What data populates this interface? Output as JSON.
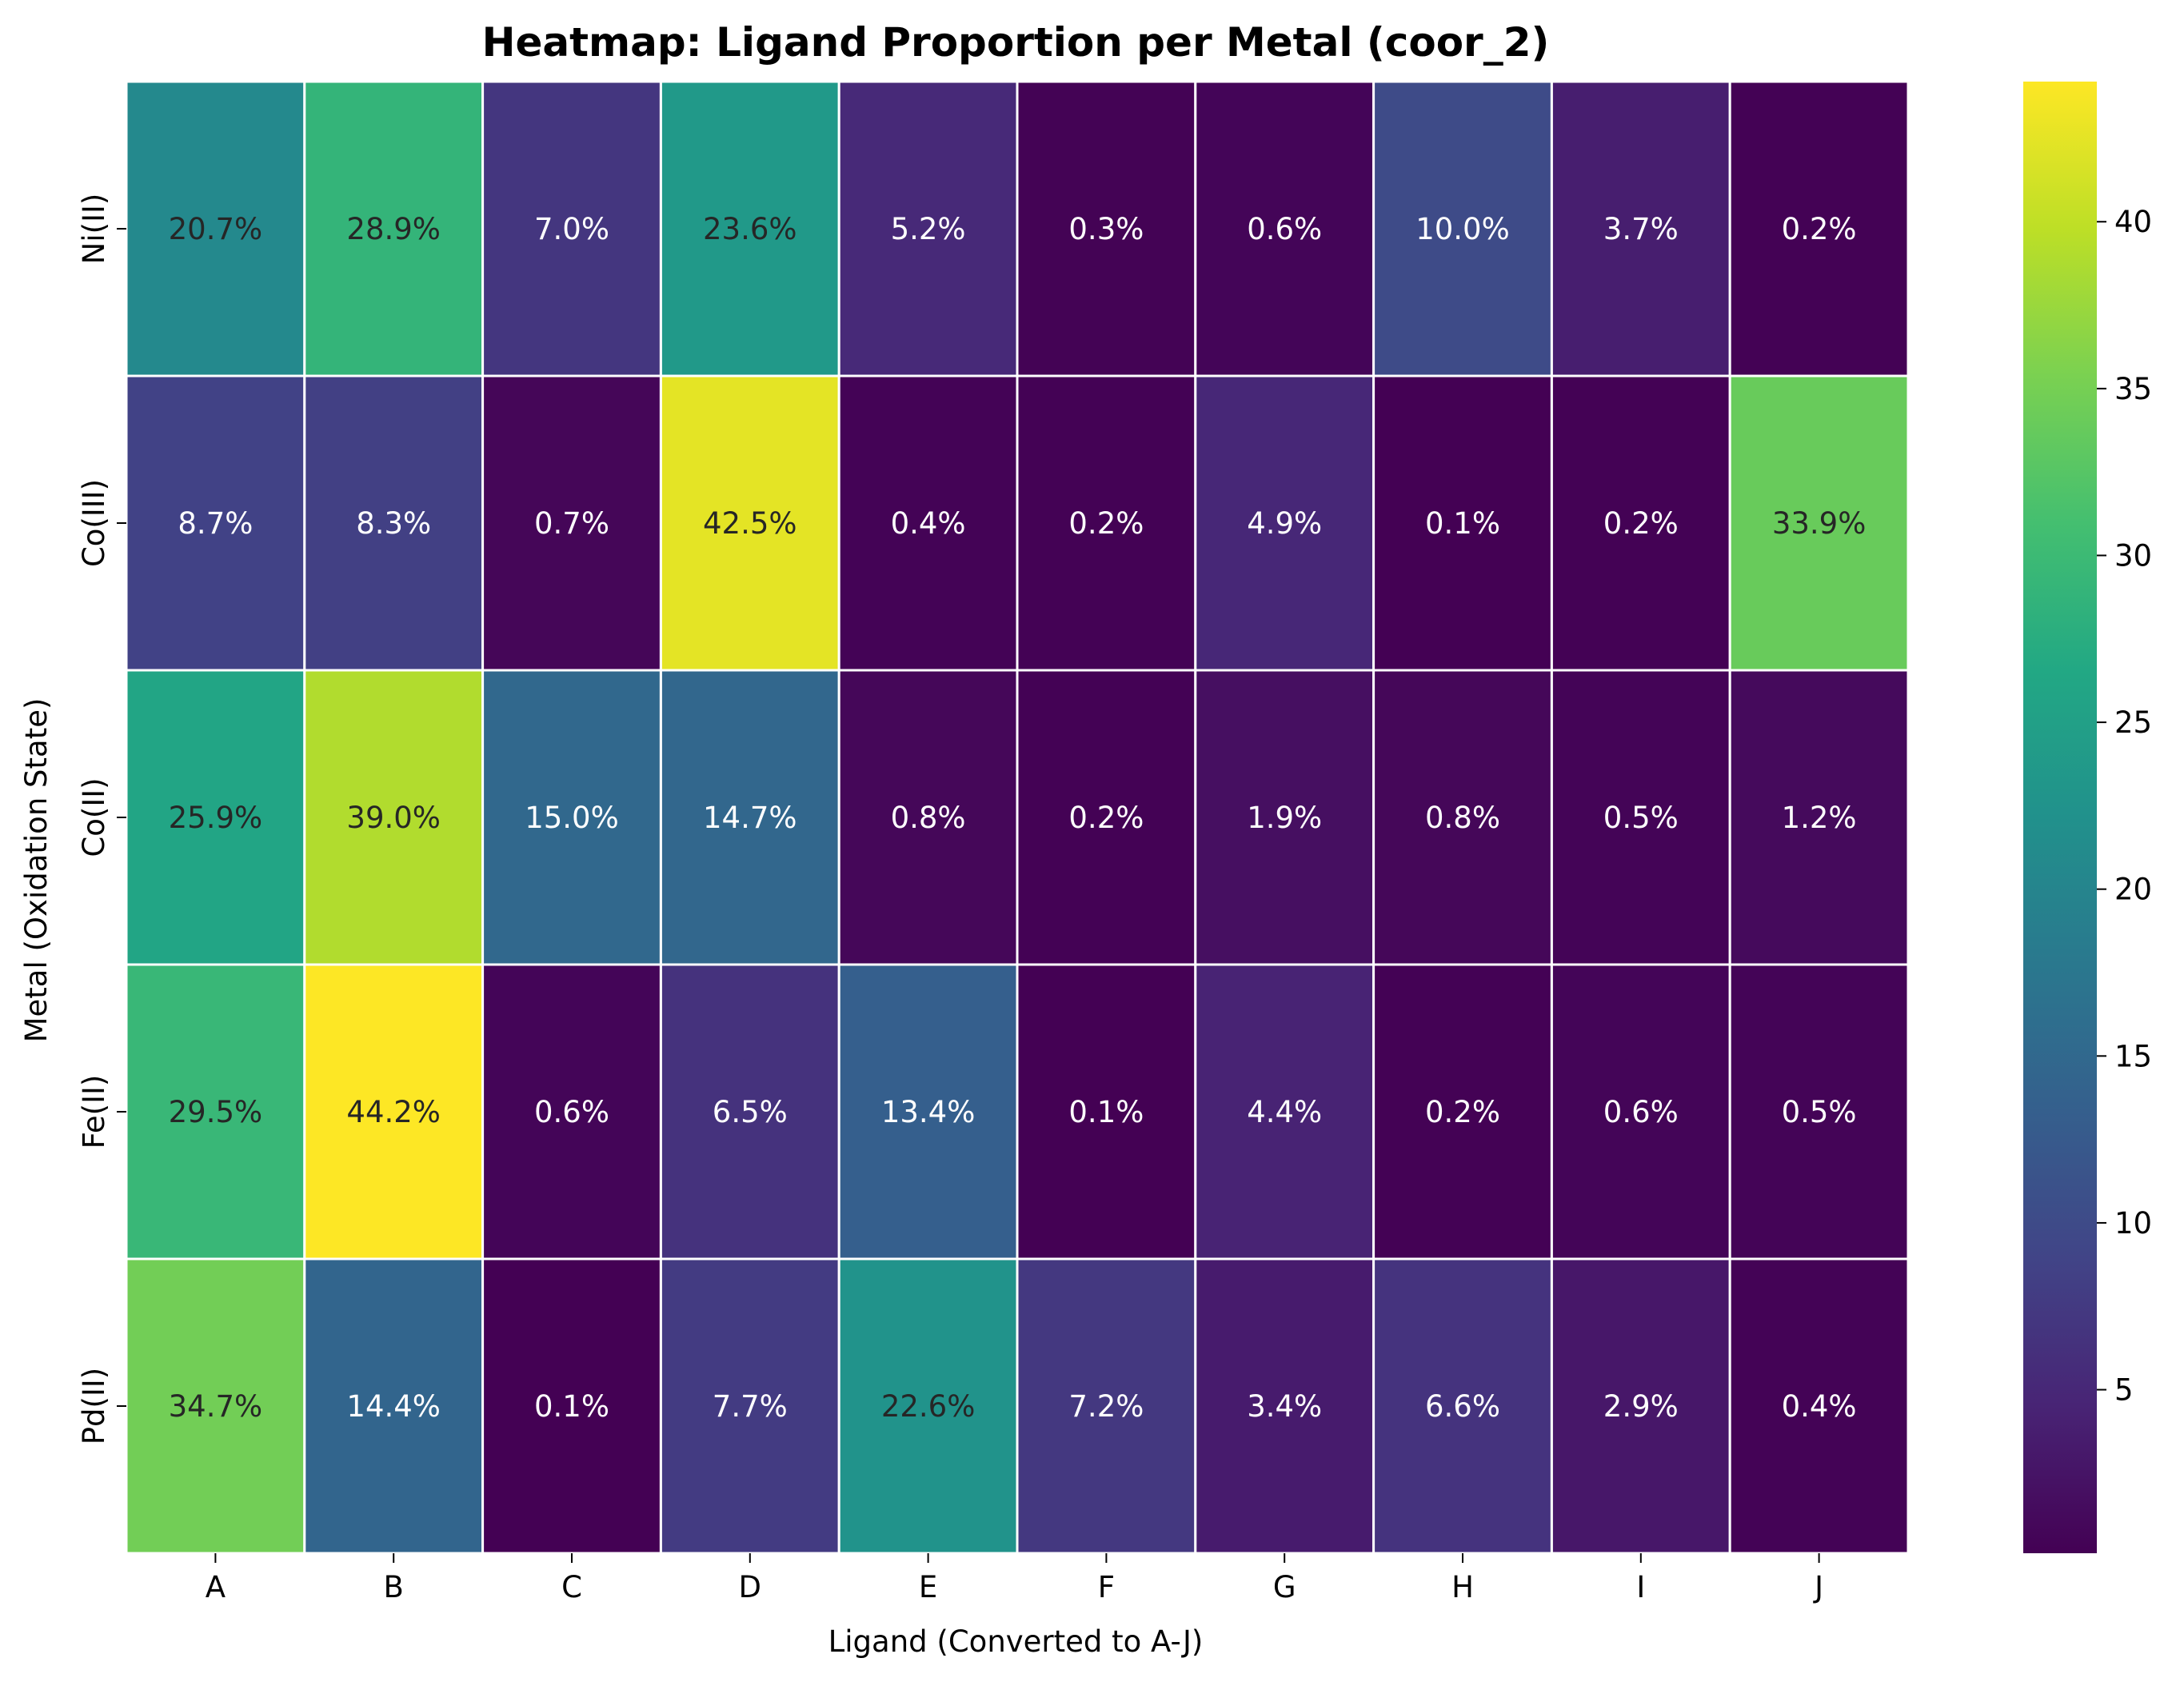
{
  "chart_data": {
    "type": "heatmap",
    "title": "Heatmap: Ligand Proportion per Metal (coor_2)",
    "xlabel": "Ligand (Converted to A-J)",
    "ylabel": "Metal (Oxidation State)",
    "x_categories": [
      "A",
      "B",
      "C",
      "D",
      "E",
      "F",
      "G",
      "H",
      "I",
      "J"
    ],
    "y_categories": [
      "Ni(II)",
      "Co(III)",
      "Co(II)",
      "Fe(II)",
      "Pd(II)"
    ],
    "values": [
      [
        20.7,
        28.9,
        7.0,
        23.6,
        5.2,
        0.3,
        0.6,
        10.0,
        3.7,
        0.2
      ],
      [
        8.7,
        8.3,
        0.7,
        42.5,
        0.4,
        0.2,
        4.9,
        0.1,
        0.2,
        33.9
      ],
      [
        25.9,
        39.0,
        15.0,
        14.7,
        0.8,
        0.2,
        1.9,
        0.8,
        0.5,
        1.2
      ],
      [
        29.5,
        44.2,
        0.6,
        6.5,
        13.4,
        0.1,
        4.4,
        0.2,
        0.6,
        0.5
      ],
      [
        34.7,
        14.4,
        0.1,
        7.7,
        22.6,
        7.2,
        3.4,
        6.6,
        2.9,
        0.4
      ]
    ],
    "cell_labels": [
      [
        "20.7%",
        "28.9%",
        "7.0%",
        "23.6%",
        "5.2%",
        "0.3%",
        "0.6%",
        "10.0%",
        "3.7%",
        "0.2%"
      ],
      [
        "8.7%",
        "8.3%",
        "0.7%",
        "42.5%",
        "0.4%",
        "0.2%",
        "4.9%",
        "0.1%",
        "0.2%",
        "33.9%"
      ],
      [
        "25.9%",
        "39.0%",
        "15.0%",
        "14.7%",
        "0.8%",
        "0.2%",
        "1.9%",
        "0.8%",
        "0.5%",
        "1.2%"
      ],
      [
        "29.5%",
        "44.2%",
        "0.6%",
        "6.5%",
        "13.4%",
        "0.1%",
        "4.4%",
        "0.2%",
        "0.6%",
        "0.5%"
      ],
      [
        "34.7%",
        "14.4%",
        "0.1%",
        "7.7%",
        "22.6%",
        "7.2%",
        "3.4%",
        "6.6%",
        "2.9%",
        "0.4%"
      ]
    ],
    "colormap": "viridis",
    "vmin": 0.1,
    "vmax": 44.2,
    "colorbar_ticks": [
      "5",
      "10",
      "15",
      "20",
      "25",
      "30",
      "35",
      "40"
    ],
    "colorbar_tick_values": [
      5,
      10,
      15,
      20,
      25,
      30,
      35,
      40
    ],
    "grid_color": "#ffffff",
    "legend": "colorbar-right"
  }
}
